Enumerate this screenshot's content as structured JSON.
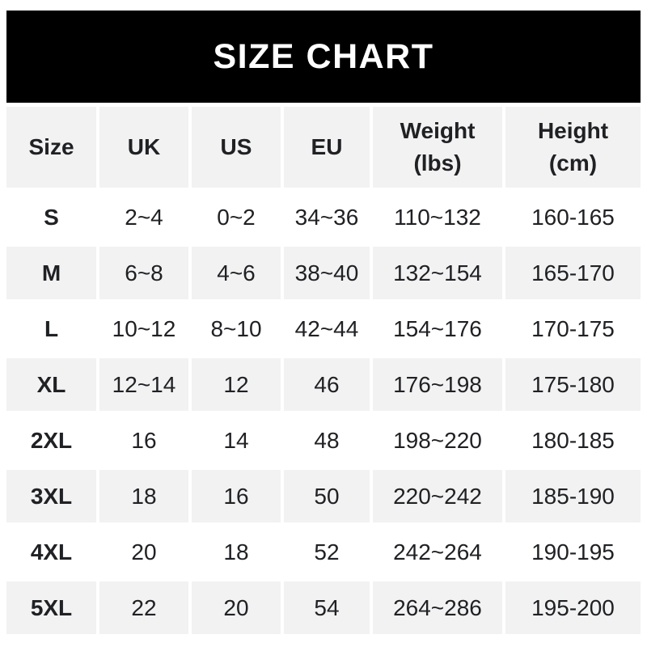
{
  "banner": {
    "title": "SIZE CHART"
  },
  "colors": {
    "banner_bg": "#000000",
    "banner_text": "#ffffff",
    "stripe_bg": "#f2f2f3",
    "row_bg": "#ffffff",
    "text": "#202124"
  },
  "header_display": [
    "Size",
    "UK",
    "US",
    "EU",
    "Weight\n(lbs)",
    "Height\n(cm)"
  ],
  "chart_data": {
    "type": "table",
    "title": "SIZE CHART",
    "columns": [
      "Size",
      "UK",
      "US",
      "EU",
      "Weight (lbs)",
      "Height (cm)"
    ],
    "rows": [
      [
        "S",
        "2~4",
        "0~2",
        "34~36",
        "110~132",
        "160-165"
      ],
      [
        "M",
        "6~8",
        "4~6",
        "38~40",
        "132~154",
        "165-170"
      ],
      [
        "L",
        "10~12",
        "8~10",
        "42~44",
        "154~176",
        "170-175"
      ],
      [
        "XL",
        "12~14",
        "12",
        "46",
        "176~198",
        "175-180"
      ],
      [
        "2XL",
        "16",
        "14",
        "48",
        "198~220",
        "180-185"
      ],
      [
        "3XL",
        "18",
        "16",
        "50",
        "220~242",
        "185-190"
      ],
      [
        "4XL",
        "20",
        "18",
        "52",
        "242~264",
        "190-195"
      ],
      [
        "5XL",
        "22",
        "20",
        "54",
        "264~286",
        "195-200"
      ]
    ],
    "layout": {
      "striping": "header and rows M, XL, 3XL, 5XL on light gray; others white",
      "range_separator_weight_uk_us_eu": "~",
      "range_separator_height": "-"
    }
  }
}
